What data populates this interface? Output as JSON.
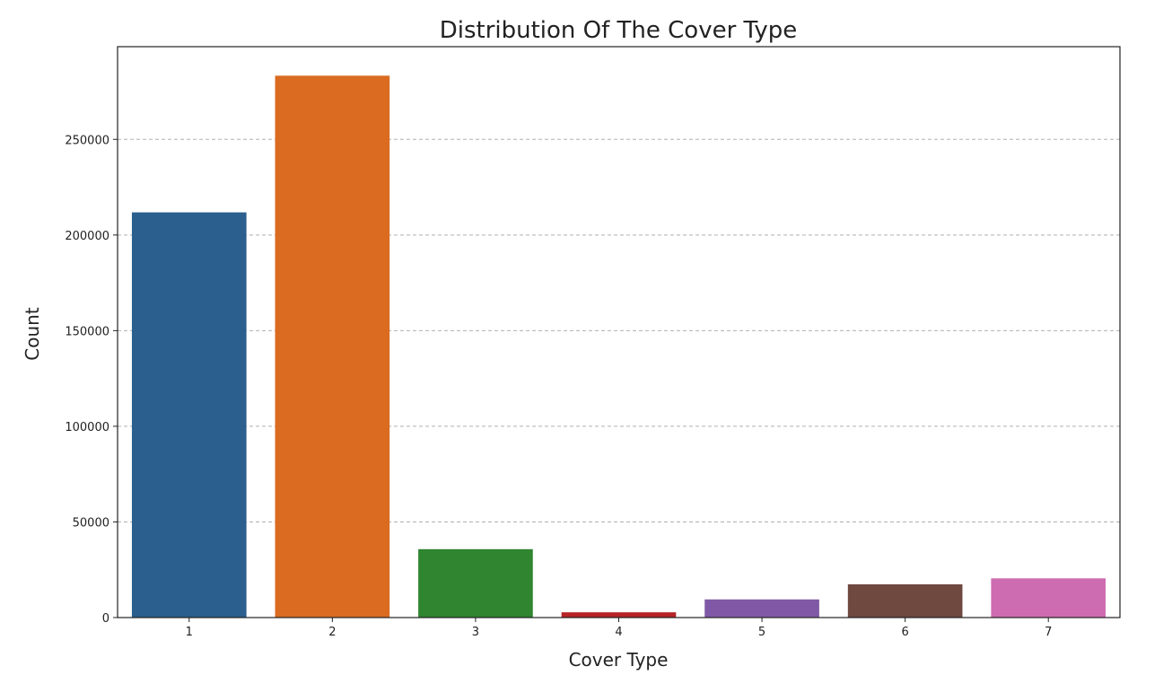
{
  "chart_data": {
    "type": "bar",
    "title": "Distribution Of The Cover Type",
    "xlabel": "Cover Type",
    "ylabel": "Count",
    "categories": [
      "1",
      "2",
      "3",
      "4",
      "5",
      "6",
      "7"
    ],
    "values": [
      211840,
      283301,
      35754,
      2747,
      9493,
      17367,
      20510
    ],
    "ylim": [
      0,
      298466
    ],
    "yticks": [
      0,
      50000,
      100000,
      150000,
      200000,
      250000
    ],
    "ytick_labels": [
      "0",
      "50000",
      "100000",
      "150000",
      "200000",
      "250000"
    ],
    "grid": "y-dashed",
    "legend": "none",
    "colors": [
      "#2a5f8e",
      "#da6b21",
      "#2f8530",
      "#b62427",
      "#8059a6",
      "#6f4840",
      "#cd6cb1"
    ],
    "grid_color": "#b0b0b0",
    "axis_color": "#222222"
  }
}
